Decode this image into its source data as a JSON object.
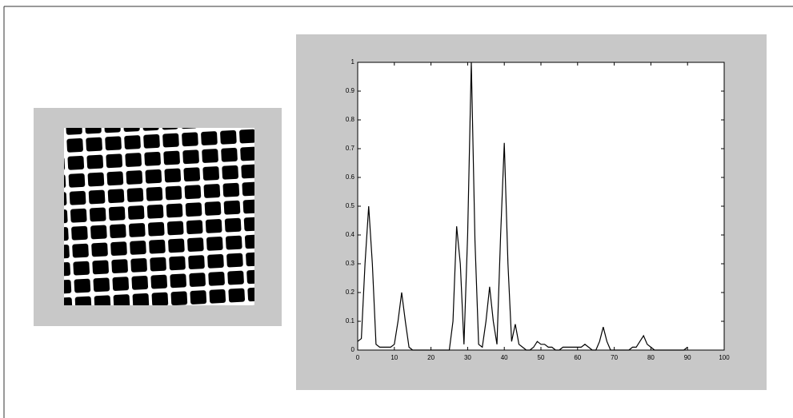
{
  "chart_data": {
    "type": "line",
    "x": [
      0,
      1,
      2,
      3,
      4,
      5,
      6,
      7,
      8,
      9,
      10,
      11,
      12,
      13,
      14,
      15,
      16,
      17,
      18,
      19,
      20,
      21,
      22,
      23,
      24,
      25,
      26,
      27,
      28,
      29,
      30,
      31,
      32,
      33,
      34,
      35,
      36,
      37,
      38,
      39,
      40,
      41,
      42,
      43,
      44,
      45,
      46,
      47,
      48,
      49,
      50,
      51,
      52,
      53,
      54,
      55,
      56,
      57,
      58,
      59,
      60,
      61,
      62,
      63,
      64,
      65,
      66,
      67,
      68,
      69,
      70,
      71,
      72,
      73,
      74,
      75,
      76,
      77,
      78,
      79,
      80,
      81,
      82,
      83,
      84,
      85,
      86,
      87,
      88,
      89,
      90
    ],
    "values": [
      0.03,
      0.04,
      0.3,
      0.5,
      0.3,
      0.02,
      0.01,
      0.01,
      0.01,
      0.01,
      0.02,
      0.1,
      0.2,
      0.1,
      0.01,
      0,
      0,
      0,
      0,
      0,
      0,
      0,
      0,
      0,
      0,
      0,
      0.1,
      0.43,
      0.3,
      0.02,
      0.4,
      1.0,
      0.38,
      0.02,
      0.01,
      0.1,
      0.22,
      0.1,
      0.02,
      0.4,
      0.72,
      0.3,
      0.03,
      0.09,
      0.02,
      0.01,
      0,
      0,
      0.01,
      0.03,
      0.02,
      0.02,
      0.01,
      0.01,
      0,
      0,
      0.01,
      0.01,
      0.01,
      0.01,
      0.01,
      0.01,
      0.02,
      0.01,
      0,
      0,
      0.03,
      0.08,
      0.03,
      0,
      0,
      0,
      0,
      0,
      0,
      0.01,
      0.01,
      0.03,
      0.05,
      0.02,
      0.01,
      0,
      0,
      0,
      0,
      0,
      0,
      0,
      0,
      0,
      0.01
    ],
    "color": "#000000",
    "xlim": [
      0,
      100
    ],
    "xticks": [
      0,
      10,
      20,
      30,
      40,
      50,
      60,
      70,
      80,
      90,
      100
    ],
    "ylim": [
      0,
      1
    ],
    "yticks": [
      0,
      0.1,
      0.2,
      0.3,
      0.4,
      0.5,
      0.6,
      0.7,
      0.8,
      0.9,
      1
    ],
    "grid": false
  }
}
